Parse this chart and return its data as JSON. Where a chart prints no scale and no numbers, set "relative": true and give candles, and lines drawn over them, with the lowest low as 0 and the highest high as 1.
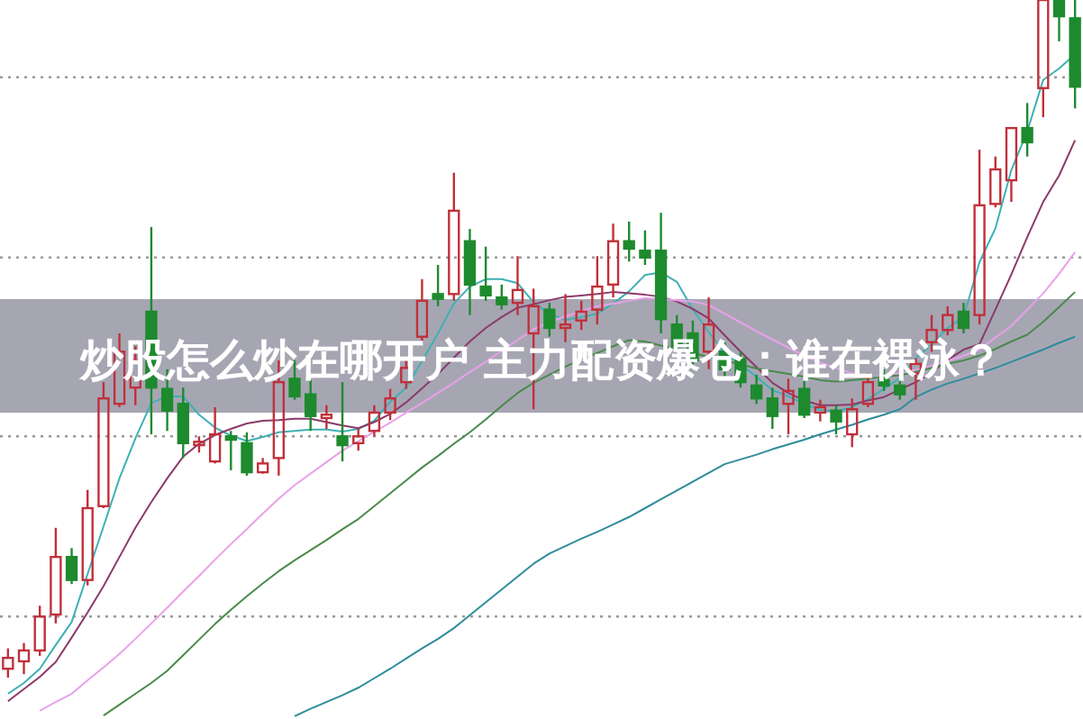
{
  "chart_data": {
    "type": "candlestick",
    "title": "炒股怎么炒在哪开户 主力配资爆仓：谁在裸泳？",
    "relative": true,
    "categories": [
      null,
      null,
      null,
      null,
      null,
      null,
      null,
      null,
      null,
      null,
      null,
      null,
      null,
      null,
      null,
      null,
      null,
      null,
      null,
      null,
      null,
      null,
      null,
      null,
      null,
      null,
      null,
      null,
      null,
      null,
      null,
      null,
      null,
      null,
      null,
      null,
      null,
      null,
      null,
      null,
      null,
      null,
      null,
      null,
      null,
      null,
      null,
      null,
      null,
      null,
      null,
      null,
      null,
      null,
      null,
      null,
      null,
      null,
      null,
      null,
      null,
      null,
      null,
      null,
      null,
      null,
      null,
      null
    ],
    "ohlc": [
      [
        0.013,
        0.043,
        0,
        0.029
      ],
      [
        0.024,
        0.051,
        0.005,
        0.04
      ],
      [
        0.04,
        0.106,
        0.032,
        0.09
      ],
      [
        0.093,
        0.221,
        0.08,
        0.178
      ],
      [
        0.178,
        0.191,
        0.138,
        0.144
      ],
      [
        0.144,
        0.277,
        0.136,
        0.25
      ],
      [
        0.253,
        0.436,
        0.25,
        0.412
      ],
      [
        0.404,
        0.508,
        0.399,
        0.481
      ],
      [
        0.428,
        0.489,
        0.402,
        0.468
      ],
      [
        0.54,
        0.665,
        0.359,
        0.428
      ],
      [
        0.426,
        0.455,
        0.364,
        0.394
      ],
      [
        0.404,
        0.428,
        0.324,
        0.346
      ],
      [
        0.343,
        0.356,
        0.332,
        0.348
      ],
      [
        0.319,
        0.399,
        0.316,
        0.359
      ],
      [
        0.356,
        0.364,
        0.306,
        0.351
      ],
      [
        0.346,
        0.362,
        0.298,
        0.303
      ],
      [
        0.303,
        0.324,
        0.301,
        0.316
      ],
      [
        0.324,
        0.468,
        0.298,
        0.436
      ],
      [
        0.441,
        0.468,
        0.41,
        0.415
      ],
      [
        0.418,
        0.439,
        0.364,
        0.386
      ],
      [
        0.383,
        0.402,
        0.367,
        0.388
      ],
      [
        0.356,
        0.436,
        0.319,
        0.343
      ],
      [
        0.346,
        0.367,
        0.335,
        0.356
      ],
      [
        0.364,
        0.402,
        0.356,
        0.391
      ],
      [
        0.391,
        0.426,
        0.38,
        0.412
      ],
      [
        0.436,
        0.471,
        0.426,
        0.457
      ],
      [
        0.503,
        0.588,
        0.495,
        0.556
      ],
      [
        0.566,
        0.609,
        0.548,
        0.559
      ],
      [
        0.566,
        0.745,
        0.556,
        0.689
      ],
      [
        0.644,
        0.662,
        0.535,
        0.58
      ],
      [
        0.577,
        0.636,
        0.556,
        0.564
      ],
      [
        0.561,
        0.58,
        0.543,
        0.551
      ],
      [
        0.553,
        0.622,
        0.535,
        0.572
      ],
      [
        0.508,
        0.574,
        0.396,
        0.548
      ],
      [
        0.543,
        0.553,
        0.503,
        0.516
      ],
      [
        0.516,
        0.566,
        0.495,
        0.521
      ],
      [
        0.527,
        0.556,
        0.513,
        0.54
      ],
      [
        0.543,
        0.622,
        0.521,
        0.577
      ],
      [
        0.58,
        0.67,
        0.561,
        0.644
      ],
      [
        0.644,
        0.673,
        0.614,
        0.633
      ],
      [
        0.63,
        0.66,
        0.609,
        0.62
      ],
      [
        0.63,
        0.686,
        0.508,
        0.529
      ],
      [
        0.521,
        0.535,
        0.481,
        0.489
      ],
      [
        0.508,
        0.527,
        0.455,
        0.468
      ],
      [
        0.481,
        0.561,
        0.455,
        0.521
      ],
      [
        0.481,
        0.495,
        0.441,
        0.455
      ],
      [
        0.471,
        0.481,
        0.428,
        0.436
      ],
      [
        0.431,
        0.447,
        0.404,
        0.412
      ],
      [
        0.412,
        0.428,
        0.367,
        0.386
      ],
      [
        0.404,
        0.441,
        0.359,
        0.423
      ],
      [
        0.426,
        0.441,
        0.383,
        0.388
      ],
      [
        0.391,
        0.41,
        0.378,
        0.399
      ],
      [
        0.394,
        0.402,
        0.359,
        0.378
      ],
      [
        0.359,
        0.412,
        0.34,
        0.396
      ],
      [
        0.404,
        0.449,
        0.399,
        0.436
      ],
      [
        0.439,
        0.455,
        0.423,
        0.431
      ],
      [
        0.431,
        0.441,
        0.41,
        0.418
      ],
      [
        0.449,
        0.471,
        0.41,
        0.463
      ],
      [
        0.495,
        0.535,
        0.481,
        0.513
      ],
      [
        0.513,
        0.548,
        0.505,
        0.535
      ],
      [
        0.54,
        0.553,
        0.508,
        0.516
      ],
      [
        0.535,
        0.779,
        0.521,
        0.697
      ],
      [
        0.699,
        0.769,
        0.694,
        0.75
      ],
      [
        0.734,
        0.811,
        0.702,
        0.811
      ],
      [
        0.811,
        0.848,
        0.769,
        0.79
      ],
      [
        0.87,
        1.0,
        0.827,
        1.0
      ],
      [
        1.0,
        1.0,
        0.939,
        0.976
      ],
      [
        0.973,
        1.0,
        0.84,
        0.872
      ]
    ],
    "colors": [
      "#c0303a",
      "#c0303a",
      "#c0303a",
      "#c0303a",
      "#1e8a2e",
      "#c0303a",
      "#c0303a",
      "#c0303a",
      "#c0303a",
      "#1e8a2e",
      "#1e8a2e",
      "#1e8a2e",
      "#c0303a",
      "#c0303a",
      "#1e8a2e",
      "#1e8a2e",
      "#c0303a",
      "#c0303a",
      "#1e8a2e",
      "#1e8a2e",
      "#c0303a",
      "#1e8a2e",
      "#c0303a",
      "#c0303a",
      "#c0303a",
      "#c0303a",
      "#c0303a",
      "#1e8a2e",
      "#c0303a",
      "#1e8a2e",
      "#1e8a2e",
      "#1e8a2e",
      "#c0303a",
      "#c0303a",
      "#1e8a2e",
      "#c0303a",
      "#c0303a",
      "#c0303a",
      "#c0303a",
      "#1e8a2e",
      "#1e8a2e",
      "#1e8a2e",
      "#1e8a2e",
      "#1e8a2e",
      "#c0303a",
      "#1e8a2e",
      "#1e8a2e",
      "#1e8a2e",
      "#1e8a2e",
      "#c0303a",
      "#1e8a2e",
      "#c0303a",
      "#1e8a2e",
      "#c0303a",
      "#c0303a",
      "#1e8a2e",
      "#1e8a2e",
      "#c0303a",
      "#c0303a",
      "#c0303a",
      "#1e8a2e",
      "#c0303a",
      "#c0303a",
      "#c0303a",
      "#1e8a2e",
      "#c0303a",
      "#1e8a2e",
      "#1e8a2e"
    ],
    "series": [
      {
        "type": "line",
        "color": "#3fb0b4",
        "values": [
          -0.024,
          -0.008,
          0.013,
          0.048,
          0.082,
          0.153,
          0.223,
          0.294,
          0.353,
          0.405,
          0.415,
          0.415,
          0.388,
          0.369,
          0.357,
          0.349,
          0.355,
          0.362,
          0.364,
          0.366,
          0.366,
          0.363,
          0.367,
          0.379,
          0.407,
          0.428,
          0.467,
          0.508,
          0.552,
          0.577,
          0.588,
          0.588,
          0.582,
          0.554,
          0.537,
          0.528,
          0.532,
          0.537,
          0.552,
          0.57,
          0.594,
          0.598,
          0.584,
          0.543,
          0.51,
          0.479,
          0.462,
          0.444,
          0.424,
          0.415,
          0.404,
          0.395,
          0.393,
          0.399,
          0.411,
          0.426,
          0.442,
          0.471,
          0.492,
          0.516,
          0.532,
          0.613,
          0.663,
          0.749,
          0.806,
          0.882,
          0.899,
          0.92
        ]
      },
      {
        "type": "line",
        "color": "#8b3a6a",
        "values": [
          -0.035,
          -0.017,
          0.001,
          0.023,
          0.059,
          0.096,
          0.135,
          0.178,
          0.221,
          0.259,
          0.294,
          0.326,
          0.345,
          0.358,
          0.367,
          0.375,
          0.379,
          0.38,
          0.382,
          0.382,
          0.377,
          0.372,
          0.368,
          0.377,
          0.389,
          0.406,
          0.427,
          0.448,
          0.472,
          0.496,
          0.516,
          0.532,
          0.546,
          0.551,
          0.557,
          0.562,
          0.564,
          0.566,
          0.569,
          0.567,
          0.565,
          0.562,
          0.555,
          0.544,
          0.53,
          0.505,
          0.481,
          0.458,
          0.435,
          0.42,
          0.409,
          0.402,
          0.402,
          0.403,
          0.409,
          0.414,
          0.425,
          0.436,
          0.451,
          0.469,
          0.484,
          0.492,
          0.543,
          0.595,
          0.65,
          0.702,
          0.741,
          0.793
        ]
      },
      {
        "type": "line",
        "color": "#eaa0ea",
        "values": [
          null,
          null,
          -0.049,
          -0.036,
          -0.024,
          -0.004,
          0.015,
          0.035,
          0.057,
          0.08,
          0.103,
          0.127,
          0.15,
          0.174,
          0.197,
          0.219,
          0.242,
          0.264,
          0.284,
          0.301,
          0.318,
          0.335,
          0.349,
          0.363,
          0.376,
          0.391,
          0.405,
          0.42,
          0.435,
          0.451,
          0.466,
          0.482,
          0.498,
          0.514,
          0.525,
          0.533,
          0.541,
          0.548,
          0.552,
          0.556,
          0.56,
          0.559,
          0.557,
          0.555,
          0.55,
          0.537,
          0.524,
          0.511,
          0.499,
          0.487,
          0.475,
          0.465,
          0.457,
          0.449,
          0.441,
          0.445,
          0.449,
          0.454,
          0.46,
          0.467,
          0.475,
          0.484,
          0.502,
          0.519,
          0.543,
          0.567,
          0.596,
          0.628
        ]
      },
      {
        "type": "line",
        "color": "#4a8a4a",
        "values": [
          null,
          null,
          null,
          null,
          null,
          null,
          -0.056,
          -0.04,
          -0.024,
          -0.008,
          0.01,
          0.033,
          0.056,
          0.079,
          0.1,
          0.12,
          0.139,
          0.157,
          0.173,
          0.188,
          0.203,
          0.219,
          0.234,
          0.253,
          0.272,
          0.291,
          0.31,
          0.327,
          0.345,
          0.362,
          0.381,
          0.401,
          0.42,
          0.435,
          0.447,
          0.459,
          0.47,
          0.479,
          0.489,
          0.498,
          0.496,
          0.49,
          0.485,
          0.479,
          0.473,
          0.468,
          0.462,
          0.456,
          0.452,
          0.448,
          0.444,
          0.439,
          0.437,
          0.439,
          0.441,
          0.444,
          0.446,
          0.451,
          0.457,
          0.463,
          0.468,
          0.475,
          0.485,
          0.496,
          0.506,
          0.525,
          0.547,
          0.569
        ]
      },
      {
        "type": "line",
        "color": "#2e8c9c",
        "values": [
          null,
          null,
          null,
          null,
          null,
          null,
          null,
          null,
          null,
          null,
          null,
          null,
          null,
          null,
          null,
          null,
          null,
          null,
          -0.057,
          -0.046,
          -0.036,
          -0.026,
          -0.015,
          -0.001,
          0.013,
          0.028,
          0.043,
          0.057,
          0.073,
          0.092,
          0.111,
          0.13,
          0.149,
          0.168,
          0.183,
          0.194,
          0.205,
          0.215,
          0.226,
          0.237,
          0.25,
          0.263,
          0.276,
          0.289,
          0.302,
          0.315,
          0.322,
          0.329,
          0.337,
          0.344,
          0.351,
          0.359,
          0.366,
          0.373,
          0.381,
          0.388,
          0.396,
          0.414,
          0.425,
          0.434,
          0.441,
          0.449,
          0.457,
          0.466,
          0.475,
          0.484,
          0.494,
          0.503
        ]
      }
    ],
    "ref_lines": [
      {
        "axis": "y",
        "value": 0.886,
        "color": "#999999",
        "line_style": "dotted"
      },
      {
        "axis": "y",
        "value": 0.62,
        "color": "#999999",
        "line_style": "dotted"
      },
      {
        "axis": "y",
        "value": 0.356,
        "color": "#999999",
        "line_style": "dotted"
      },
      {
        "axis": "y",
        "value": 0.09,
        "color": "#999999",
        "line_style": "dotted"
      }
    ]
  }
}
